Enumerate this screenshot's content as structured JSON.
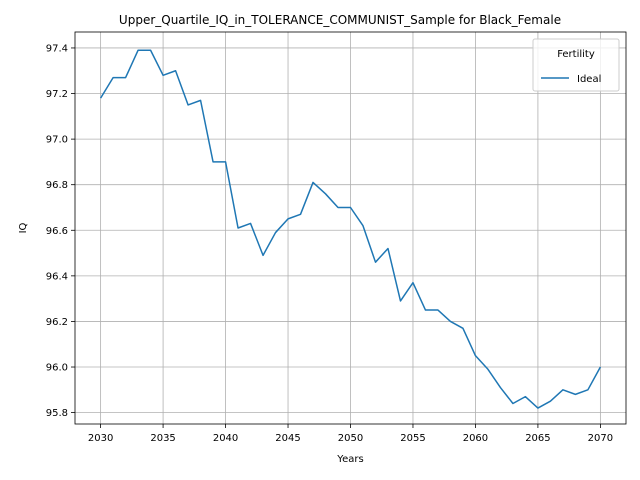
{
  "chart_data": {
    "type": "line",
    "title": "Upper_Quartile_IQ_in_TOLERANCE_COMMUNIST_Sample for Black_Female",
    "xlabel": "Years",
    "ylabel": "IQ",
    "xlim": [
      2027.95,
      2072.05
    ],
    "ylim": [
      95.75,
      97.47
    ],
    "xticks": [
      2030,
      2035,
      2040,
      2045,
      2050,
      2055,
      2060,
      2065,
      2070
    ],
    "yticks": [
      95.8,
      96.0,
      96.2,
      96.4,
      96.6,
      96.8,
      97.0,
      97.2,
      97.4
    ],
    "xtick_labels": [
      "2030",
      "2035",
      "2040",
      "2045",
      "2050",
      "2055",
      "2060",
      "2065",
      "2070"
    ],
    "ytick_labels": [
      "95.8",
      "96.0",
      "96.2",
      "96.4",
      "96.6",
      "96.8",
      "97.0",
      "97.2",
      "97.4"
    ],
    "grid": true,
    "legend": {
      "title": "Fertility",
      "position": "top-right"
    },
    "series": [
      {
        "name": "Ideal",
        "color": "#1f77b4",
        "x": [
          2030,
          2031,
          2032,
          2033,
          2034,
          2035,
          2036,
          2037,
          2038,
          2039,
          2040,
          2041,
          2042,
          2043,
          2044,
          2045,
          2046,
          2047,
          2048,
          2049,
          2050,
          2051,
          2052,
          2053,
          2054,
          2055,
          2056,
          2057,
          2058,
          2059,
          2060,
          2061,
          2062,
          2063,
          2064,
          2065,
          2066,
          2067,
          2068,
          2069,
          2070
        ],
        "y": [
          97.18,
          97.27,
          97.27,
          97.39,
          97.39,
          97.28,
          97.3,
          97.15,
          97.17,
          96.9,
          96.9,
          96.61,
          96.63,
          96.49,
          96.59,
          96.65,
          96.67,
          96.81,
          96.76,
          96.7,
          96.7,
          96.62,
          96.46,
          96.52,
          96.29,
          96.37,
          96.25,
          96.25,
          96.2,
          96.17,
          96.05,
          95.99,
          95.91,
          95.84,
          95.87,
          95.82,
          95.85,
          95.9,
          95.88,
          95.9,
          96.0
        ]
      }
    ]
  }
}
